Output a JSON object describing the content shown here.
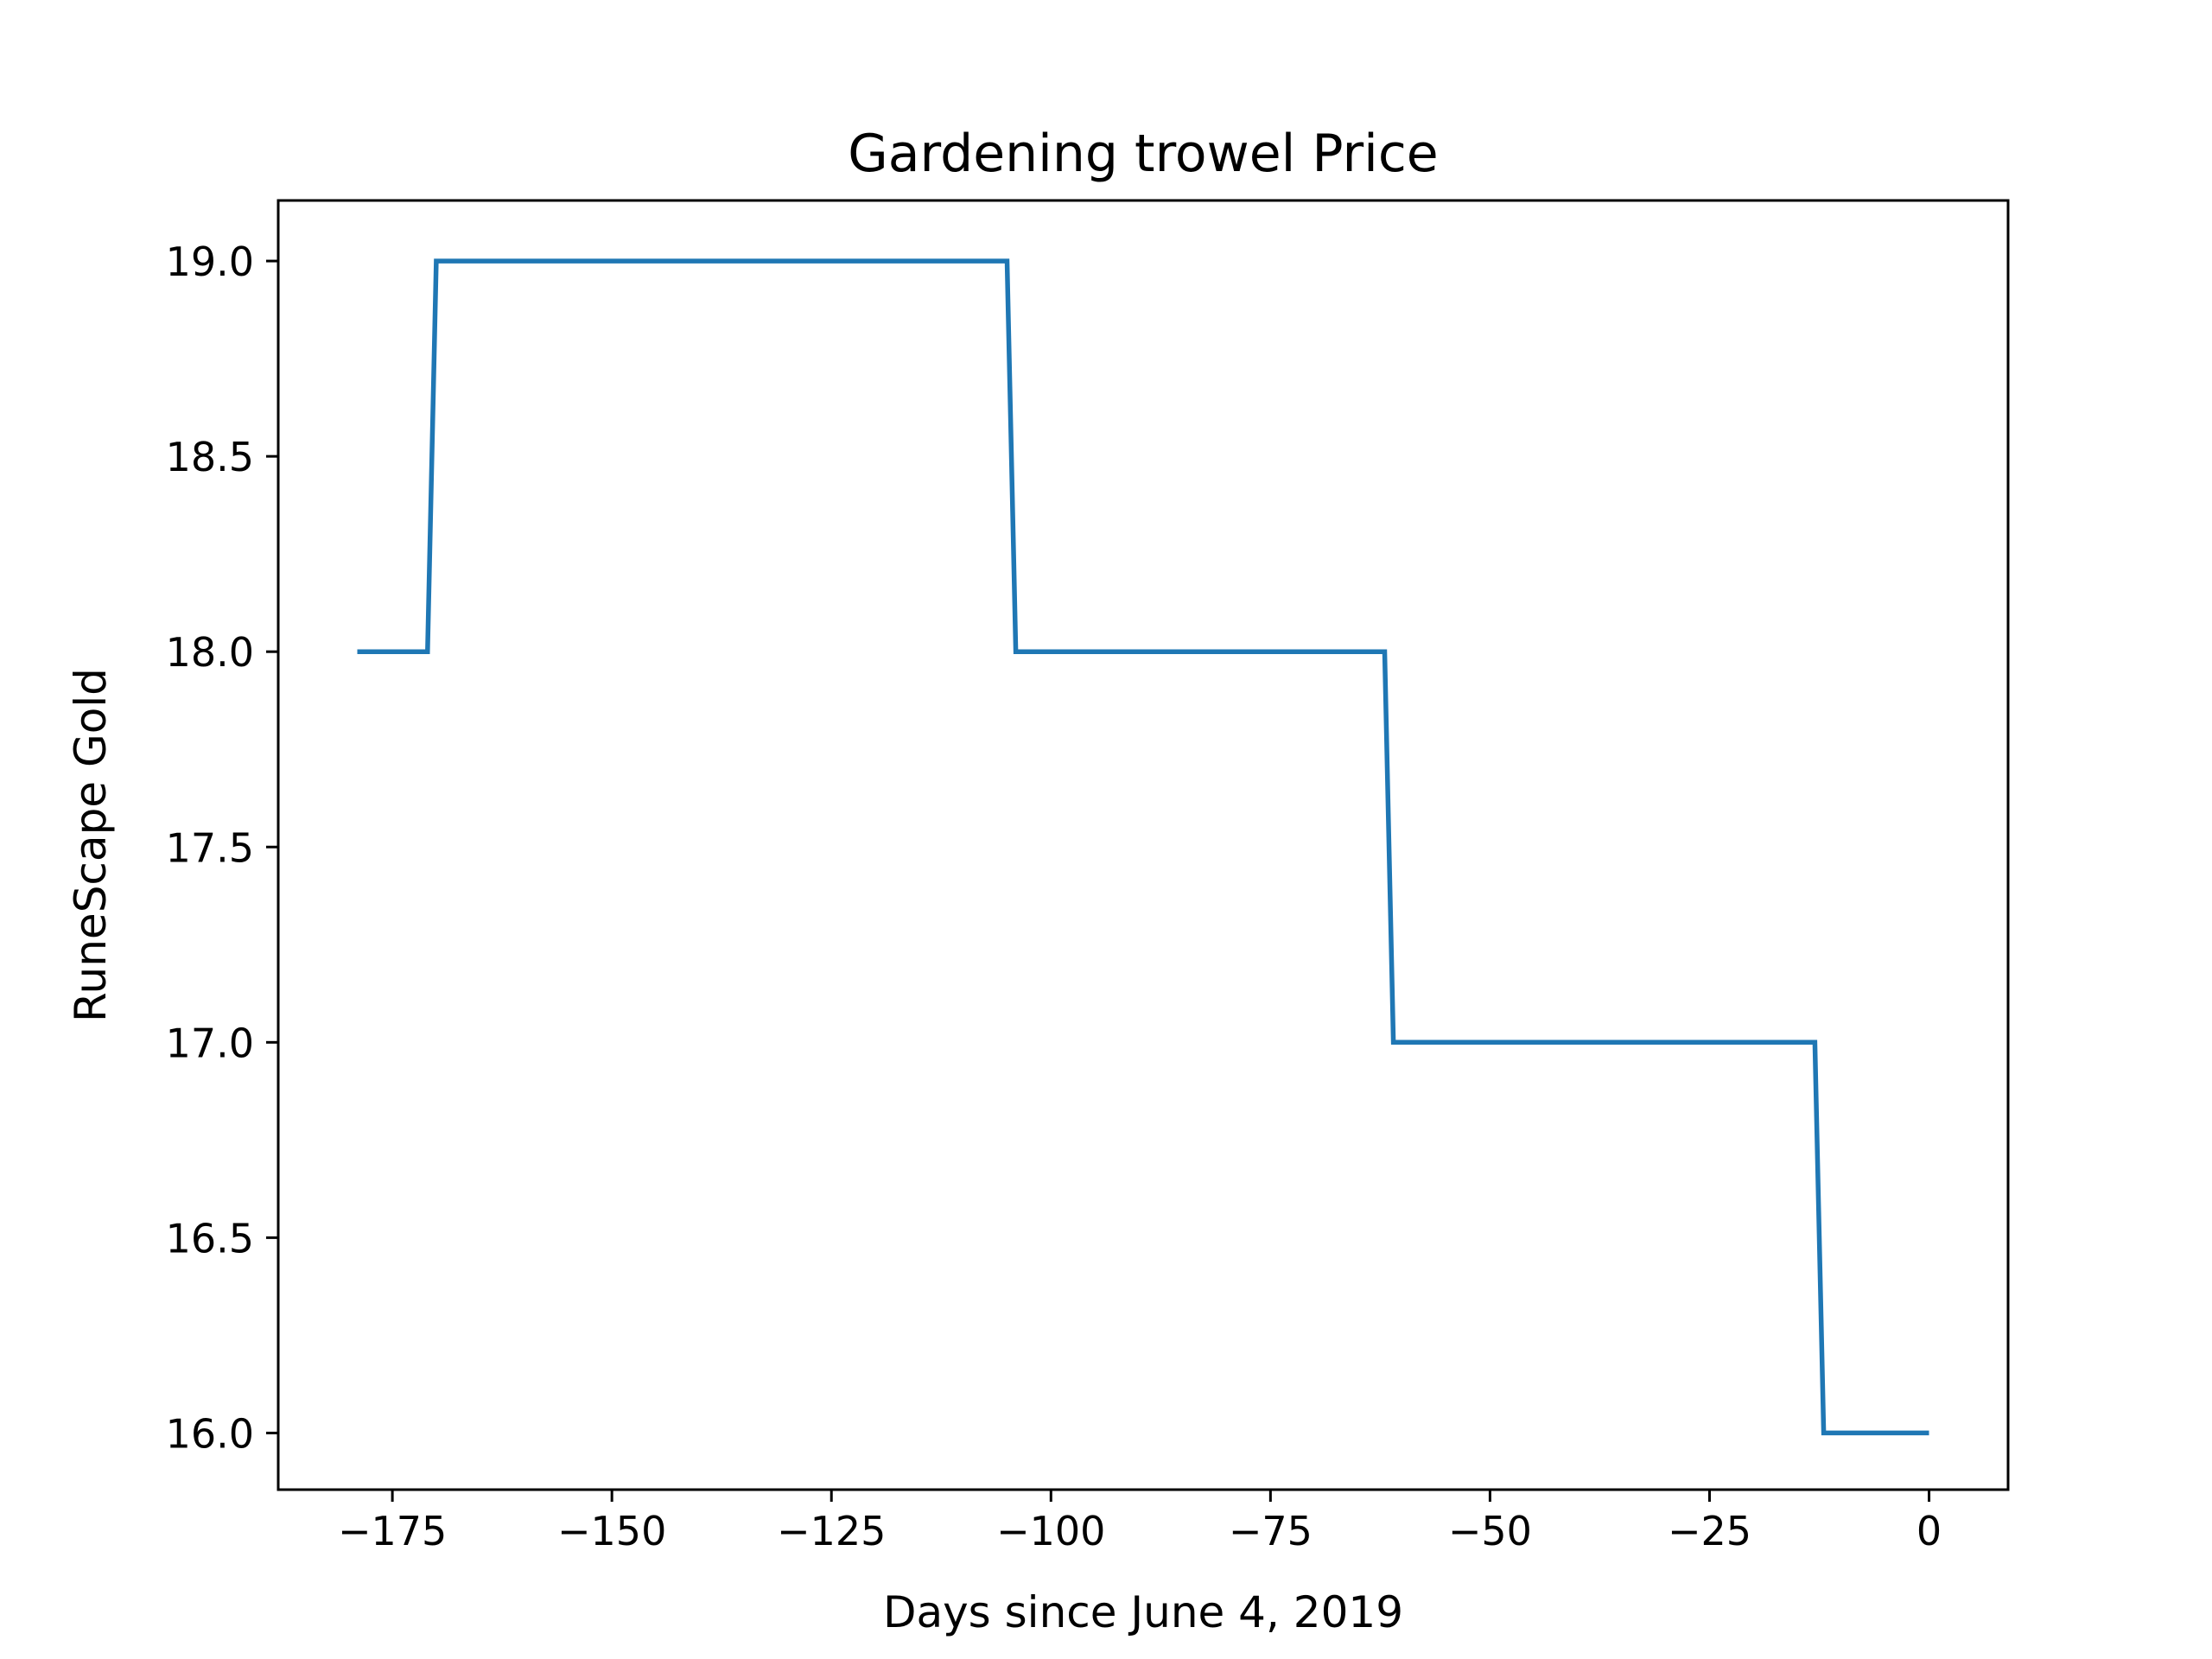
{
  "chart_data": {
    "type": "line",
    "title": "Gardening trowel Price",
    "xlabel": "Days since June 4, 2019",
    "ylabel": "RuneScape Gold",
    "xlim": [
      -188,
      9
    ],
    "ylim": [
      15.855,
      19.155
    ],
    "x_ticks": [
      -175,
      -150,
      -125,
      -100,
      -75,
      -50,
      -25,
      0
    ],
    "x_tick_labels": [
      "−175",
      "−150",
      "−125",
      "−100",
      "−75",
      "−50",
      "−25",
      "0"
    ],
    "y_ticks": [
      16.0,
      16.5,
      17.0,
      17.5,
      18.0,
      18.5,
      19.0
    ],
    "y_tick_labels": [
      "16.0",
      "16.5",
      "17.0",
      "17.5",
      "18.0",
      "18.5",
      "19.0"
    ],
    "grid": false,
    "series": [
      {
        "color": "#1f77b4",
        "x": [
          -179,
          -171,
          -170,
          -105,
          -104,
          -62,
          -61,
          -13,
          -12,
          0
        ],
        "y": [
          18,
          18,
          19,
          19,
          18,
          18,
          17,
          17,
          16,
          16
        ]
      }
    ]
  }
}
